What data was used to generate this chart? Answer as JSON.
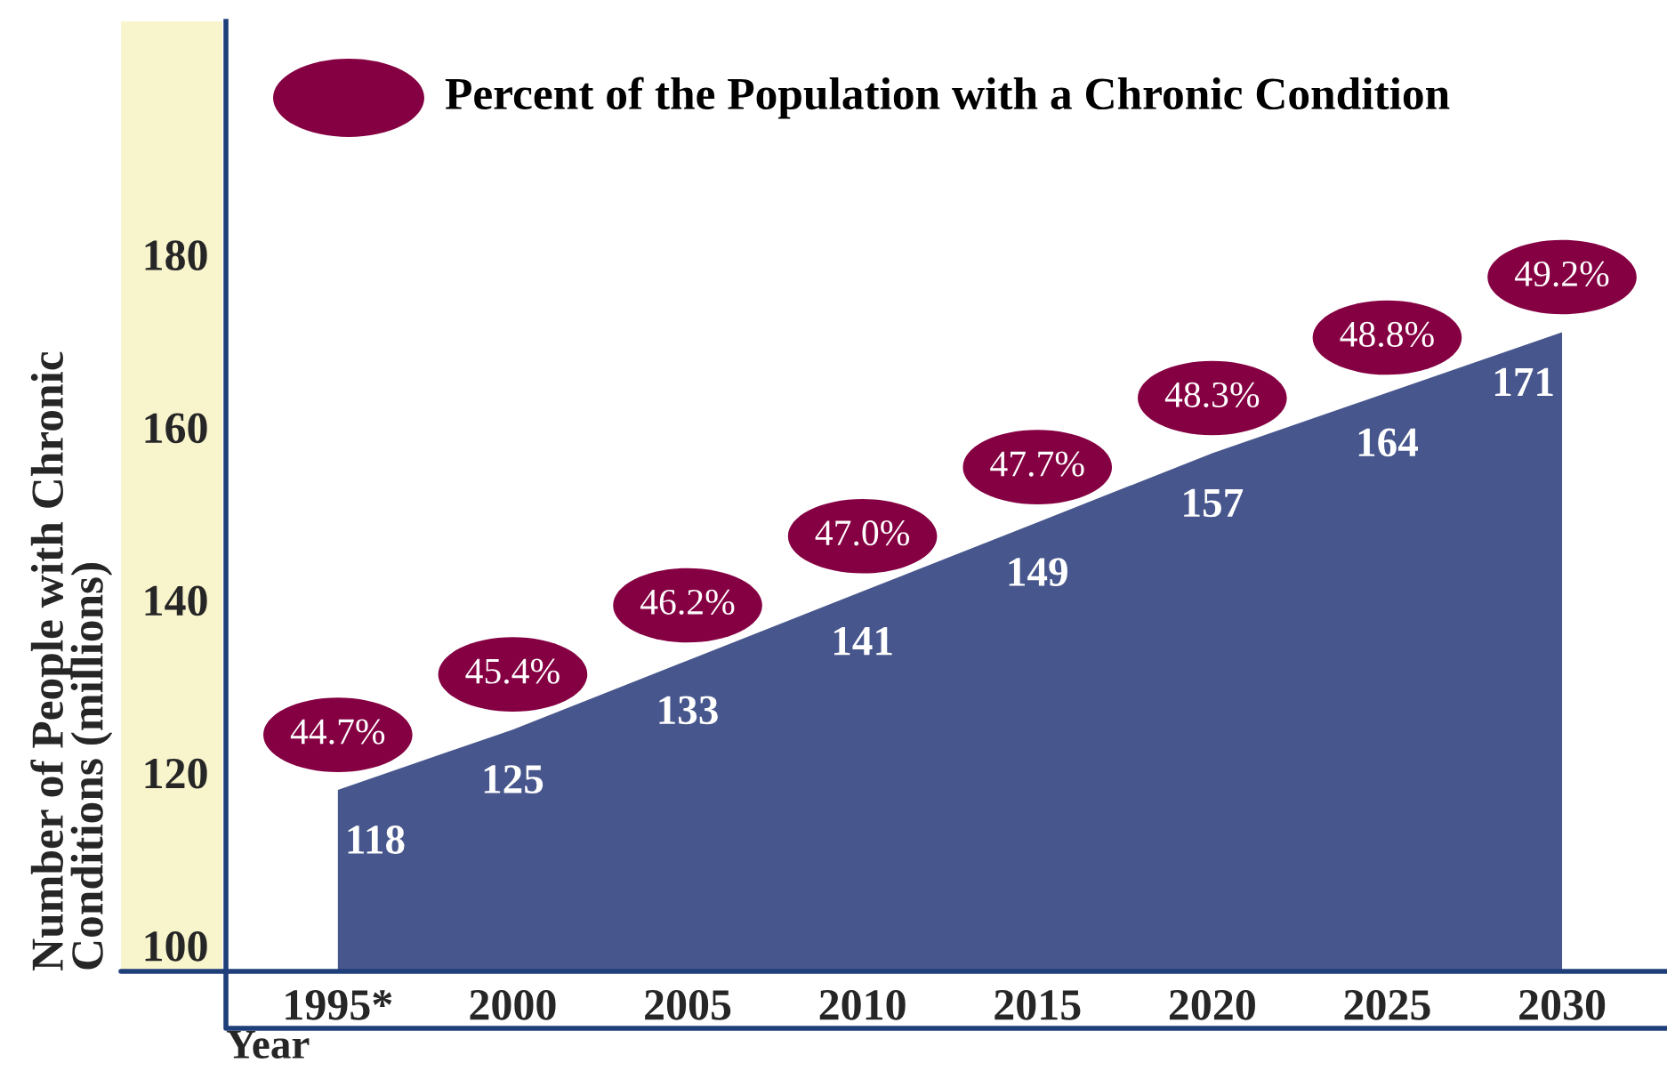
{
  "chart_data": {
    "type": "area",
    "ylabel": "Number of People with Chronic\nConditions (millions)",
    "xlabel": "Year",
    "categories": [
      "1995*",
      "2000",
      "2005",
      "2010",
      "2015",
      "2020",
      "2025",
      "2030"
    ],
    "series": [
      {
        "color": "#47568c",
        "values": [
          118,
          125,
          133,
          141,
          149,
          157,
          164,
          171
        ]
      }
    ],
    "ylim": [
      97,
      207
    ],
    "yticks": [
      100,
      120,
      140,
      160,
      180
    ],
    "data_labels": true,
    "annotations": [
      "Percent of the Population with a Chronic Condition",
      {
        "text": "44.7%",
        "x": "1995*",
        "y": 118
      },
      {
        "text": "45.4%",
        "x": "2000",
        "y": 125
      },
      {
        "text": "46.2%",
        "x": "2005",
        "y": 133
      },
      {
        "text": "47.0%",
        "x": "2010",
        "y": 141
      },
      {
        "text": "47.7%",
        "x": "2015",
        "y": 149
      },
      {
        "text": "48.3%",
        "x": "2020",
        "y": 157
      },
      {
        "text": "48.8%",
        "x": "2025",
        "y": 164
      },
      {
        "text": "49.2%",
        "x": "2030",
        "y": 171
      }
    ]
  }
}
